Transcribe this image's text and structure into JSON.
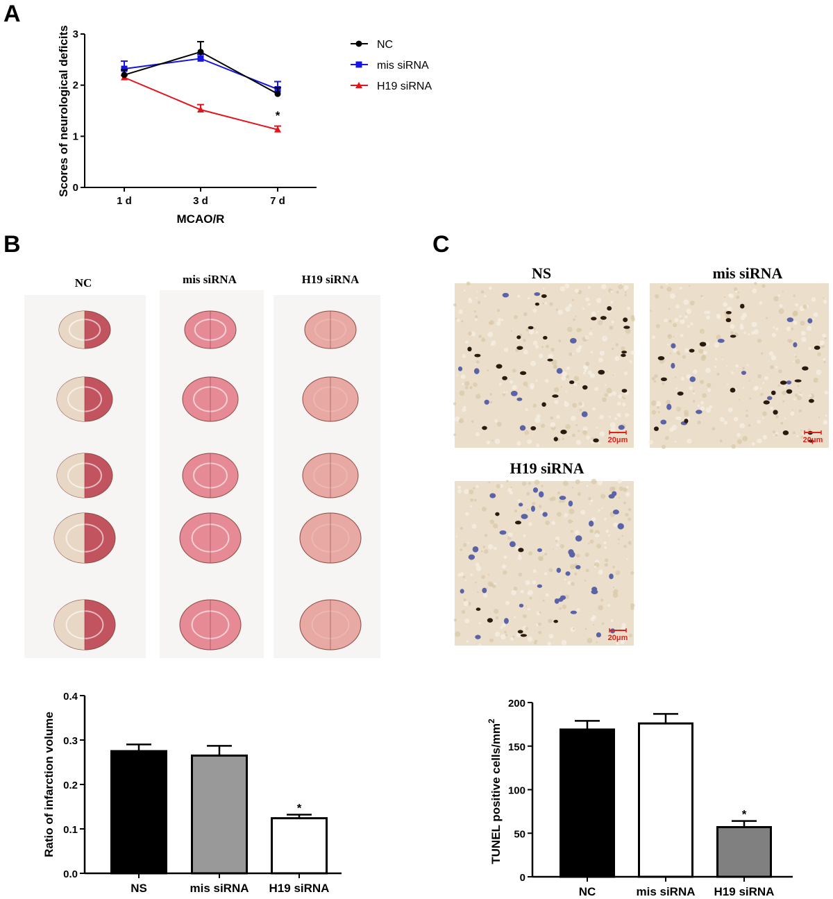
{
  "panel_labels": {
    "a": "A",
    "b": "B",
    "c": "C"
  },
  "colors": {
    "nc": "#000000",
    "mis": "#1414e6",
    "h19": "#e6141a",
    "bar_gray": "#999999",
    "bar_dark_gray": "#808080",
    "scale_bar": "#e0201a"
  },
  "chart_data": [
    {
      "type": "line",
      "panel": "A",
      "xlabel": "MCAO/R",
      "ylabel": "Scores of neurological deficits",
      "categories": [
        "1 d",
        "3 d",
        "7 d"
      ],
      "ylim": [
        0,
        3
      ],
      "yticks": [
        "0",
        "1",
        "2",
        "3"
      ],
      "legend_position": "right",
      "series": [
        {
          "name": "NC",
          "marker": "circle",
          "color": "#000000",
          "values": [
            2.2,
            2.65,
            1.83
          ],
          "errors": [
            0.1,
            0.2,
            0.12
          ]
        },
        {
          "name": "mis siRNA",
          "marker": "square",
          "color": "#1414e6",
          "values": [
            2.32,
            2.52,
            1.92
          ],
          "errors": [
            0.15,
            0.08,
            0.15
          ]
        },
        {
          "name": "H19 siRNA",
          "marker": "triangle",
          "color": "#e6141a",
          "values": [
            2.15,
            1.52,
            1.13
          ],
          "errors": [
            0.04,
            0.1,
            0.07
          ]
        }
      ],
      "annotations": [
        {
          "category": "7 d",
          "text": "*"
        }
      ]
    },
    {
      "type": "bar",
      "panel": "B",
      "ylabel": "Ratio of infarction volume",
      "categories": [
        "NS",
        "mis siRNA",
        "H19 siRNA"
      ],
      "values": [
        0.275,
        0.265,
        0.124
      ],
      "errors": [
        0.015,
        0.022,
        0.008
      ],
      "fills": [
        "#000000",
        "#999999",
        "#ffffff"
      ],
      "ylim": [
        0,
        0.4
      ],
      "yticks": [
        "0.0",
        "0.1",
        "0.2",
        "0.3",
        "0.4"
      ],
      "annotations": [
        {
          "category": "H19 siRNA",
          "text": "*"
        }
      ]
    },
    {
      "type": "bar",
      "panel": "C",
      "ylabel": "TUNEL positive cells/mm",
      "ylabel_superscript": "2",
      "categories": [
        "NC",
        "mis siRNA",
        "H19 siRNA"
      ],
      "values": [
        169,
        176,
        57
      ],
      "errors": [
        10,
        11,
        7
      ],
      "fills": [
        "#000000",
        "#ffffff",
        "#808080"
      ],
      "ylim": [
        0,
        200
      ],
      "yticks": [
        "0",
        "50",
        "100",
        "150",
        "200"
      ],
      "annotations": [
        {
          "category": "H19 siRNA",
          "text": "*"
        }
      ]
    }
  ],
  "ttc_photos": {
    "labels": [
      "NC",
      "mis siRNA",
      "H19 siRNA"
    ]
  },
  "tunel_images": {
    "labels": [
      "NS",
      "mis siRNA",
      "H19 siRNA"
    ],
    "scale_bar": "20μm"
  }
}
